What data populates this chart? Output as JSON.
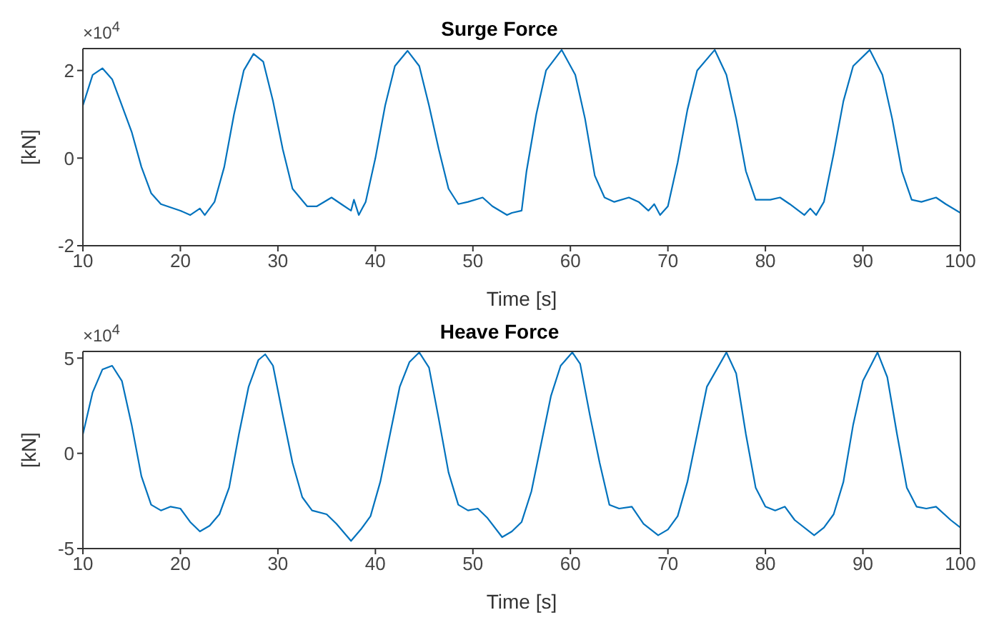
{
  "chart_data": [
    {
      "type": "line",
      "title": "Surge Force",
      "xlabel": "Time [s]",
      "ylabel": "[kN]",
      "annotations": [
        "×10$^{4}$"
      ],
      "xlim": [
        10,
        100
      ],
      "xticks": [
        10,
        20,
        30,
        40,
        50,
        60,
        70,
        80,
        90,
        100
      ],
      "ylim": [
        -2,
        2.5
      ],
      "yticks": [
        -2,
        0,
        2
      ],
      "x": [
        10,
        11,
        12,
        13,
        14,
        15,
        16,
        17,
        18,
        20,
        21,
        22,
        22.5,
        23.5,
        24.5,
        25.5,
        26.5,
        27.5,
        28.5,
        29.5,
        30.5,
        31.5,
        33,
        34,
        35.5,
        36.5,
        37.5,
        37.8,
        38.3,
        39,
        40,
        41,
        42,
        43.3,
        44.5,
        45.5,
        46.5,
        47.5,
        48.5,
        49.5,
        51,
        52,
        53.5,
        54,
        55,
        55.5,
        56.5,
        57.5,
        59.1,
        60.5,
        61.5,
        62.5,
        63.5,
        64.5,
        66,
        67,
        68,
        68.6,
        69.2,
        70,
        71,
        72,
        73,
        74.8,
        76,
        77,
        78,
        79,
        80.5,
        81.5,
        82.5,
        84,
        84.6,
        85.2,
        86,
        87,
        88,
        89,
        90.7,
        92,
        93,
        94,
        95,
        96,
        97.5,
        98.5,
        100
      ],
      "series": [
        {
          "color": "#0072bd",
          "values": [
            1.2,
            1.9,
            2.05,
            1.8,
            1.2,
            0.6,
            -0.2,
            -0.8,
            -1.05,
            -1.2,
            -1.3,
            -1.15,
            -1.3,
            -1.0,
            -0.2,
            1.0,
            2.0,
            2.38,
            2.2,
            1.3,
            0.2,
            -0.7,
            -1.1,
            -1.1,
            -0.9,
            -1.05,
            -1.2,
            -0.95,
            -1.3,
            -1.0,
            0,
            1.2,
            2.1,
            2.45,
            2.1,
            1.2,
            0.2,
            -0.7,
            -1.05,
            -1.0,
            -0.9,
            -1.1,
            -1.3,
            -1.25,
            -1.2,
            -0.3,
            1.0,
            2.0,
            2.47,
            1.9,
            0.9,
            -0.4,
            -0.9,
            -1.0,
            -0.9,
            -1.0,
            -1.2,
            -1.05,
            -1.3,
            -1.1,
            -0.1,
            1.1,
            2.0,
            2.47,
            1.9,
            0.9,
            -0.3,
            -0.95,
            -0.95,
            -0.9,
            -1.05,
            -1.3,
            -1.15,
            -1.3,
            -1.0,
            0.1,
            1.3,
            2.1,
            2.47,
            1.9,
            0.9,
            -0.3,
            -0.95,
            -1.0,
            -0.9,
            -1.05,
            -1.25
          ]
        }
      ]
    },
    {
      "type": "line",
      "title": "Heave Force",
      "xlabel": "Time [s]",
      "ylabel": "[kN]",
      "annotations": [
        "×10$^{4}$"
      ],
      "xlim": [
        10,
        100
      ],
      "xticks": [
        10,
        20,
        30,
        40,
        50,
        60,
        70,
        80,
        90,
        100
      ],
      "ylim": [
        -5,
        5.35
      ],
      "yticks": [
        -5,
        0,
        5
      ],
      "x": [
        10,
        11,
        12,
        13,
        14,
        15,
        16,
        17,
        18,
        19,
        20,
        21,
        22,
        23,
        24,
        25,
        26,
        27,
        28,
        28.7,
        29.5,
        30.5,
        31.5,
        32.5,
        33.5,
        35,
        36,
        37.5,
        38.5,
        39.5,
        40.5,
        41.5,
        42.5,
        43.5,
        44.5,
        45.5,
        46.5,
        47.5,
        48.5,
        49.5,
        50.5,
        51.5,
        53,
        54,
        55,
        56,
        57,
        58,
        59,
        60.2,
        61,
        62,
        63,
        64,
        65,
        66.3,
        67.5,
        69,
        70,
        71,
        72,
        73,
        74,
        76,
        77,
        78,
        79,
        80,
        81,
        82,
        83,
        85,
        86,
        87,
        88,
        89,
        90,
        91.5,
        92.5,
        93.5,
        94.5,
        95.5,
        96.5,
        97.5,
        99,
        100
      ],
      "series": [
        {
          "color": "#0072bd",
          "values": [
            1.0,
            3.2,
            4.4,
            4.6,
            3.8,
            1.5,
            -1.2,
            -2.7,
            -3.0,
            -2.8,
            -2.9,
            -3.6,
            -4.1,
            -3.8,
            -3.2,
            -1.8,
            1.0,
            3.5,
            4.9,
            5.2,
            4.6,
            2.0,
            -0.5,
            -2.3,
            -3.0,
            -3.2,
            -3.7,
            -4.6,
            -4.0,
            -3.3,
            -1.5,
            1.0,
            3.5,
            4.8,
            5.3,
            4.5,
            1.8,
            -1.0,
            -2.7,
            -3.0,
            -2.9,
            -3.4,
            -4.4,
            -4.1,
            -3.6,
            -2.0,
            0.5,
            3.0,
            4.6,
            5.3,
            4.7,
            2.0,
            -0.5,
            -2.7,
            -2.9,
            -2.8,
            -3.7,
            -4.3,
            -4.0,
            -3.3,
            -1.5,
            1.0,
            3.5,
            5.3,
            4.2,
            1.0,
            -1.8,
            -2.8,
            -3.0,
            -2.8,
            -3.5,
            -4.3,
            -3.9,
            -3.2,
            -1.5,
            1.5,
            3.8,
            5.3,
            4.0,
            1.0,
            -1.8,
            -2.8,
            -2.9,
            -2.8,
            -3.5,
            -3.9
          ]
        }
      ]
    }
  ]
}
